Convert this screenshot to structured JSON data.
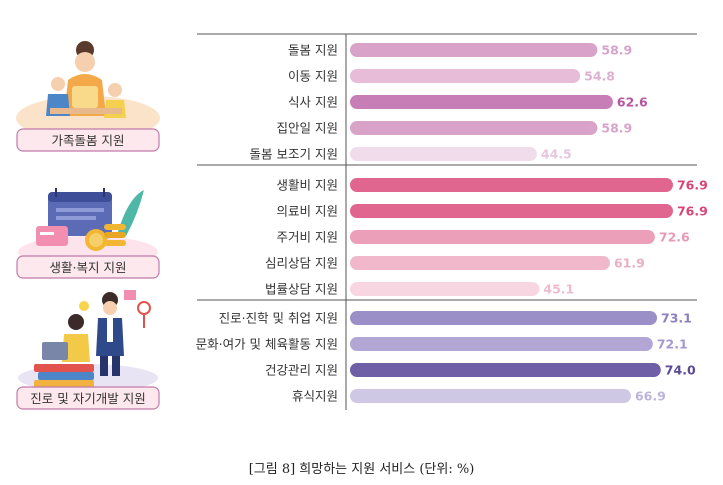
{
  "caption": "[그림 8] 희망하는 지원 서비스 (단위: %)",
  "colors": {
    "group_label_bg": "#fde8ee",
    "group_label_border": "#c17aa8"
  },
  "chart_data": {
    "type": "bar",
    "orientation": "horizontal",
    "title": "[그림 8] 희망하는 지원 서비스 (단위: %)",
    "unit": "%",
    "xlim": [
      0,
      80
    ],
    "grid": false,
    "groups": [
      {
        "name": "가족돌봄 지원",
        "icon": "family-care-illustration",
        "items": [
          {
            "label": "돌봄 지원",
            "value": 58.9,
            "color": "#d9a3c9",
            "value_color": "#d9a3c9"
          },
          {
            "label": "이동 지원",
            "value": 54.8,
            "color": "#e6bcd9",
            "value_color": "#e0b0d1"
          },
          {
            "label": "식사 지원",
            "value": 62.6,
            "color": "#c77db6",
            "value_color": "#b5569f"
          },
          {
            "label": "집안일 지원",
            "value": 58.9,
            "color": "#d9a3c9",
            "value_color": "#d9a3c9"
          },
          {
            "label": "돌봄 보조기 지원",
            "value": 44.5,
            "color": "#f1dcec",
            "value_color": "#e6c6dd"
          }
        ]
      },
      {
        "name": "생활·복지 지원",
        "icon": "living-welfare-illustration",
        "items": [
          {
            "label": "생활비 지원",
            "value": 76.9,
            "color": "#e0668f",
            "value_color": "#d94578"
          },
          {
            "label": "의료비 지원",
            "value": 76.9,
            "color": "#e0668f",
            "value_color": "#d94578"
          },
          {
            "label": "주거비 지원",
            "value": 72.6,
            "color": "#ec9fb8",
            "value_color": "#e79ab3"
          },
          {
            "label": "심리상담 지원",
            "value": 61.9,
            "color": "#f0b8ca",
            "value_color": "#ecaec2"
          },
          {
            "label": "법률상담 지원",
            "value": 45.1,
            "color": "#f7d6e1",
            "value_color": "#efbccc"
          }
        ]
      },
      {
        "name": "진로 및 자기개발 지원",
        "icon": "career-development-illustration",
        "items": [
          {
            "label": "진로·진학 및 취업 지원",
            "value": 73.1,
            "color": "#9b8fc7",
            "value_color": "#8e80c0"
          },
          {
            "label": "문화·여가 및 체육활동 지원",
            "value": 72.1,
            "color": "#b1a6d4",
            "value_color": "#a599cd"
          },
          {
            "label": "건강관리 지원",
            "value": 74.0,
            "color": "#6e5fa6",
            "value_color": "#5a4a99"
          },
          {
            "label": "휴식지원",
            "value": 66.9,
            "color": "#cfc8e5",
            "value_color": "#bdb4dc"
          }
        ]
      }
    ]
  }
}
